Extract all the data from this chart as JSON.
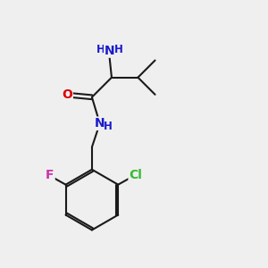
{
  "bg_color": "#efefef",
  "bond_color": "#1a1a1a",
  "bond_width": 1.5,
  "atom_colors": {
    "N": "#1a1acc",
    "O": "#dd0000",
    "Cl": "#33bb33",
    "F": "#cc33aa",
    "C": "#1a1a1a"
  },
  "font_size_atoms": 10,
  "font_size_h": 8.5,
  "xlim": [
    0,
    10
  ],
  "ylim": [
    0,
    10
  ]
}
